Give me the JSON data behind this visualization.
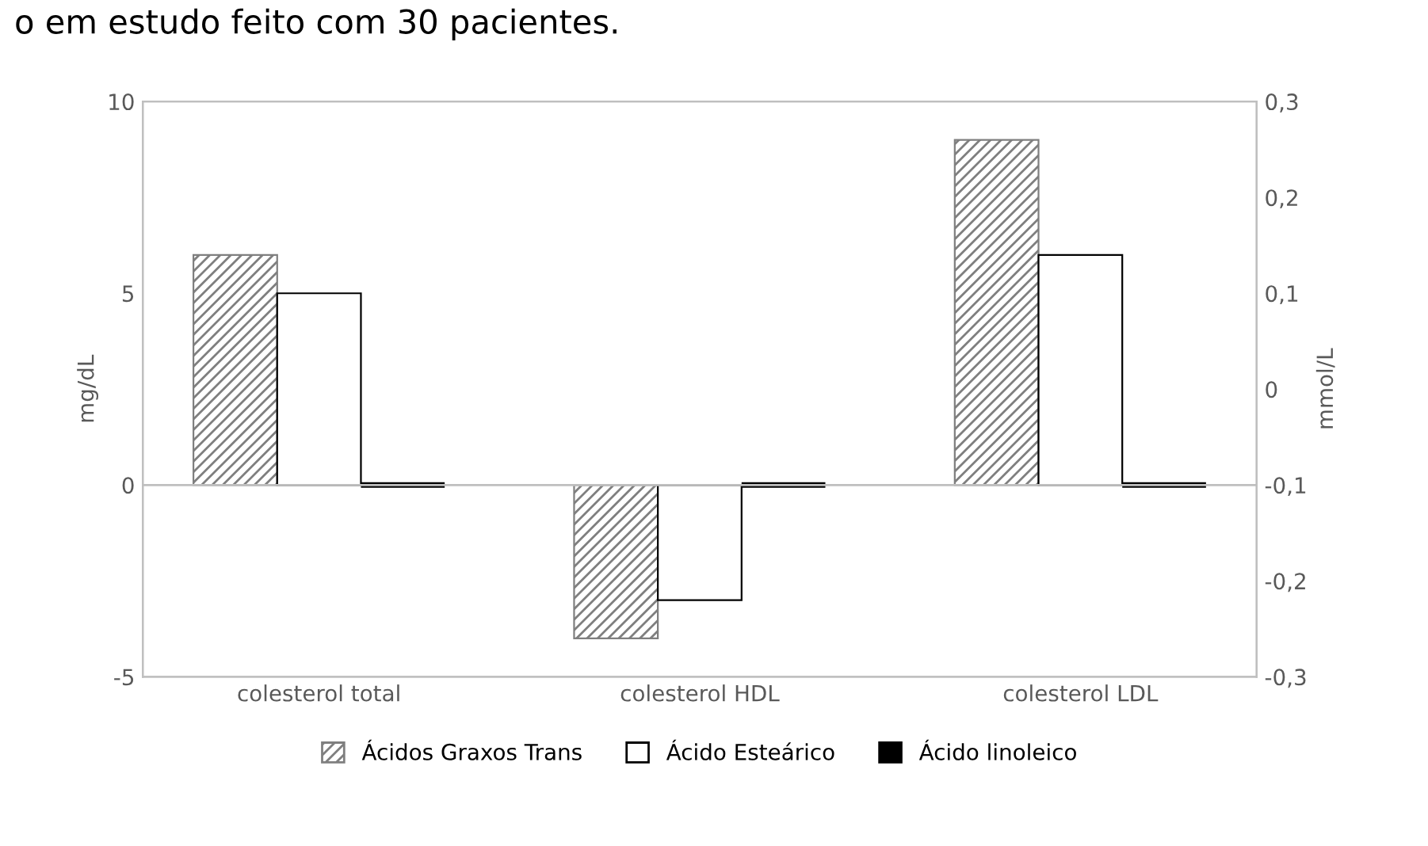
{
  "chart_data": {
    "type": "bar",
    "title": "o em estudo feito com 30 pacientes.",
    "categories": [
      "colesterol total",
      "colesterol HDL",
      "colesterol LDL"
    ],
    "series": [
      {
        "name": "Ácidos Graxos Trans",
        "color": "#7f7f7f",
        "values": [
          6,
          -4,
          9
        ]
      },
      {
        "name": "Ácido Esteárico",
        "color": "#ffffff",
        "values": [
          5,
          -3,
          6
        ]
      },
      {
        "name": "Ácido linoleico",
        "color": "#000000",
        "values": [
          0,
          0,
          0
        ]
      }
    ],
    "ylabel": "mg/dL",
    "y2label": "mmol/L",
    "ylim": [
      -5,
      10
    ],
    "yticks": [
      -5,
      0,
      5,
      10
    ],
    "y2lim": [
      -0.3,
      0.3
    ],
    "y2ticks": [
      {
        "value": -0.3,
        "label": "-0,3"
      },
      {
        "value": -0.2,
        "label": "-0,2"
      },
      {
        "value": -0.1,
        "label": "-0,1"
      },
      0,
      {
        "value": 0.1,
        "label": "0,1"
      },
      {
        "value": 0.2,
        "label": "0,2"
      },
      {
        "value": 0.3,
        "label": "0,3"
      }
    ],
    "legend": "bottom"
  }
}
